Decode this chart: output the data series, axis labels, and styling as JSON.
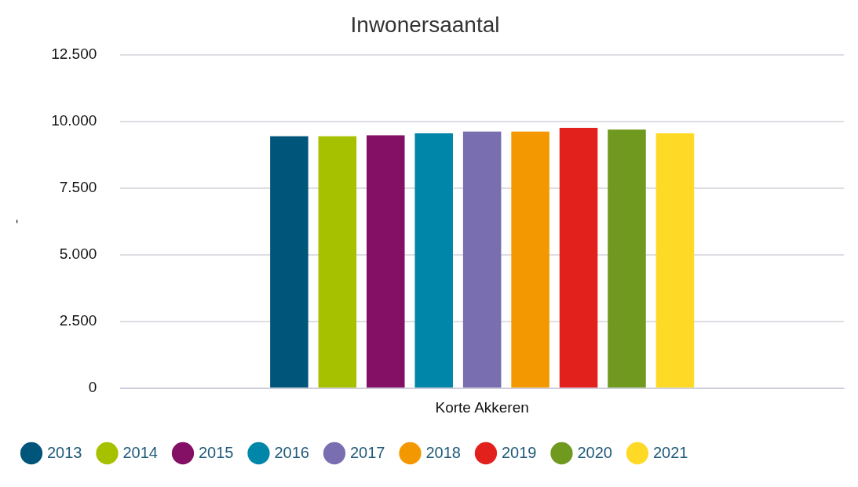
{
  "chart_data": {
    "type": "bar",
    "title": "Inwonersaantal",
    "ylabel": "-",
    "categories": [
      "Korte Akkeren"
    ],
    "series": [
      {
        "name": "2013",
        "color": "#00557a",
        "values": [
          9440
        ]
      },
      {
        "name": "2014",
        "color": "#a6c100",
        "values": [
          9440
        ]
      },
      {
        "name": "2015",
        "color": "#831065",
        "values": [
          9480
        ]
      },
      {
        "name": "2016",
        "color": "#0086a8",
        "values": [
          9550
        ]
      },
      {
        "name": "2017",
        "color": "#786eb0",
        "values": [
          9620
        ]
      },
      {
        "name": "2018",
        "color": "#f39800",
        "values": [
          9620
        ]
      },
      {
        "name": "2019",
        "color": "#e2211c",
        "values": [
          9760
        ]
      },
      {
        "name": "2020",
        "color": "#70991f",
        "values": [
          9690
        ]
      },
      {
        "name": "2021",
        "color": "#fed925",
        "values": [
          9550
        ]
      }
    ],
    "ylim": [
      0,
      12500
    ],
    "yticks": [
      {
        "value": 0,
        "label": "0"
      },
      {
        "value": 2500,
        "label": "2.500"
      },
      {
        "value": 5000,
        "label": "5.000"
      },
      {
        "value": 7500,
        "label": "7.500"
      },
      {
        "value": 10000,
        "label": "10.000"
      },
      {
        "value": 12500,
        "label": "12.500"
      }
    ],
    "grid": "y",
    "legend": "bottom"
  }
}
